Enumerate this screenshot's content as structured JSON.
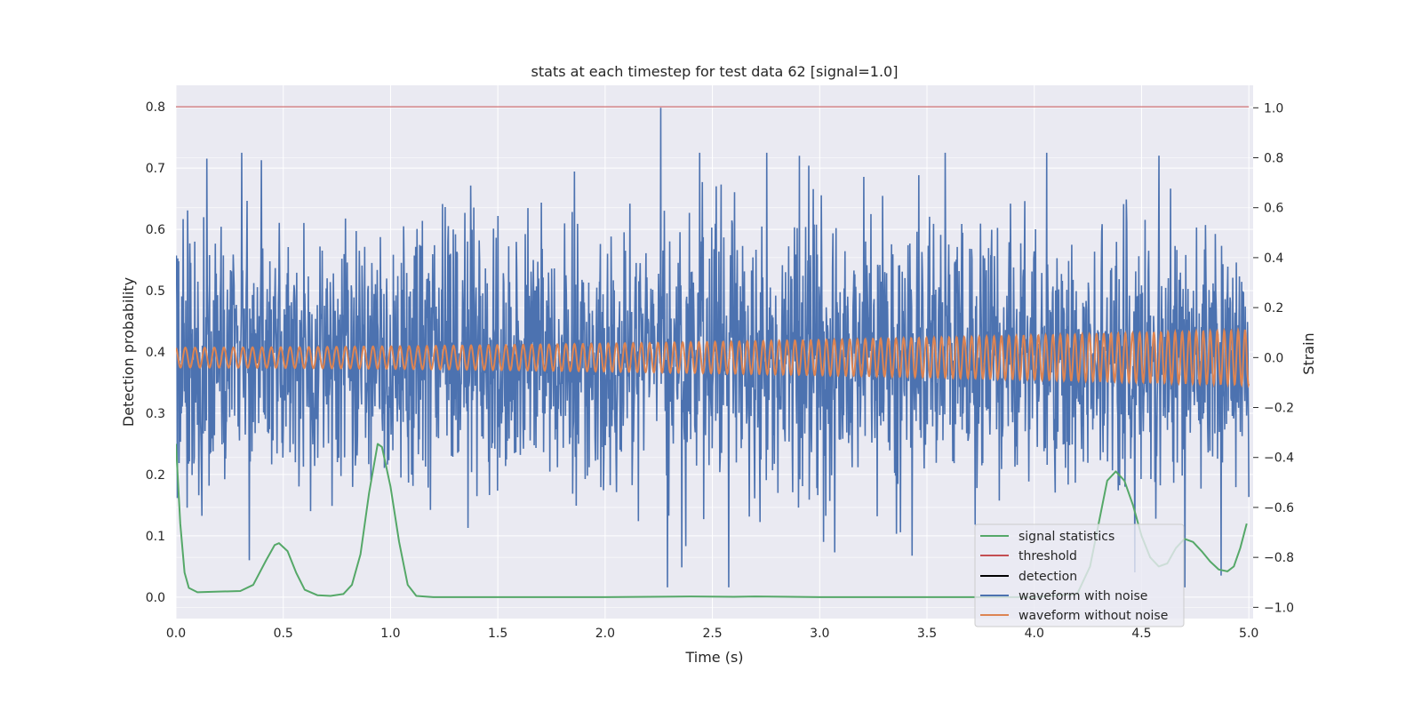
{
  "chart_data": {
    "type": "line",
    "title": "stats at each timestep for test data 62 [signal=1.0]",
    "xlabel": "Time (s)",
    "ylabel_left": "Detection probability",
    "ylabel_right": "Strain",
    "xlim": [
      0.0,
      5.02
    ],
    "ylim_left": [
      -0.035,
      0.835
    ],
    "ylim_right": [
      -1.045,
      1.09
    ],
    "x_ticks": [
      "0.0",
      "0.5",
      "1.0",
      "1.5",
      "2.0",
      "2.5",
      "3.0",
      "3.5",
      "4.0",
      "4.5",
      "5.0"
    ],
    "y_ticks_left": [
      "0.0",
      "0.1",
      "0.2",
      "0.3",
      "0.4",
      "0.5",
      "0.6",
      "0.7",
      "0.8"
    ],
    "y_ticks_right": [
      "−1.0",
      "−0.8",
      "−0.6",
      "−0.4",
      "−0.2",
      "0.0",
      "0.2",
      "0.4",
      "0.6",
      "0.8",
      "1.0"
    ],
    "grid": true,
    "legend_position": "lower-right",
    "legend": [
      "signal statistics",
      "threshold",
      "detection",
      "waveform with noise",
      "waveform without noise"
    ],
    "colors": {
      "signal_statistics": "#55a868",
      "threshold": "#c44e52",
      "detection": "#000000",
      "waveform_with_noise": "#4c72b0",
      "waveform_without_noise": "#dd8452",
      "plot_background": "#eaeaf2",
      "grid": "#ffffff"
    },
    "series": [
      {
        "name": "threshold",
        "axis": "left",
        "x": [
          0.0,
          5.0
        ],
        "y": [
          0.8,
          0.8
        ]
      },
      {
        "name": "signal statistics",
        "axis": "left",
        "x": [
          0.0,
          0.02,
          0.04,
          0.06,
          0.1,
          0.2,
          0.3,
          0.36,
          0.42,
          0.46,
          0.48,
          0.52,
          0.56,
          0.6,
          0.66,
          0.72,
          0.78,
          0.82,
          0.86,
          0.9,
          0.94,
          0.96,
          1.0,
          1.04,
          1.08,
          1.12,
          1.2,
          1.5,
          2.0,
          2.4,
          2.6,
          2.7,
          3.0,
          3.5,
          4.0,
          4.2,
          4.26,
          4.3,
          4.34,
          4.38,
          4.42,
          4.46,
          4.5,
          4.54,
          4.58,
          4.62,
          4.66,
          4.7,
          4.74,
          4.78,
          4.82,
          4.86,
          4.9,
          4.93,
          4.96,
          4.99
        ],
        "y": [
          0.25,
          0.12,
          0.04,
          0.015,
          0.008,
          0.009,
          0.01,
          0.02,
          0.06,
          0.085,
          0.088,
          0.075,
          0.04,
          0.012,
          0.003,
          0.002,
          0.005,
          0.02,
          0.07,
          0.17,
          0.25,
          0.245,
          0.18,
          0.09,
          0.02,
          0.002,
          0.0,
          0.0,
          0.0,
          0.001,
          0.0005,
          0.001,
          0.0,
          0.0,
          0.0,
          0.005,
          0.05,
          0.12,
          0.19,
          0.205,
          0.19,
          0.15,
          0.1,
          0.065,
          0.05,
          0.055,
          0.08,
          0.095,
          0.09,
          0.075,
          0.058,
          0.045,
          0.042,
          0.05,
          0.08,
          0.12
        ]
      },
      {
        "name": "waveform without noise",
        "axis": "right",
        "generated": "chirp",
        "t_range": [
          0.0,
          5.0
        ],
        "amplitude_start": 0.04,
        "amplitude_end": 0.11,
        "frequency_start_hz": 22,
        "frequency_end_hz": 31
      },
      {
        "name": "waveform with noise",
        "axis": "right",
        "generated": "noise",
        "t_range": [
          0.0,
          5.0
        ],
        "points": 2400,
        "std": 0.26,
        "max": 1.0,
        "min": -0.92
      },
      {
        "name": "detection",
        "axis": "left",
        "x": [],
        "y": []
      }
    ]
  }
}
